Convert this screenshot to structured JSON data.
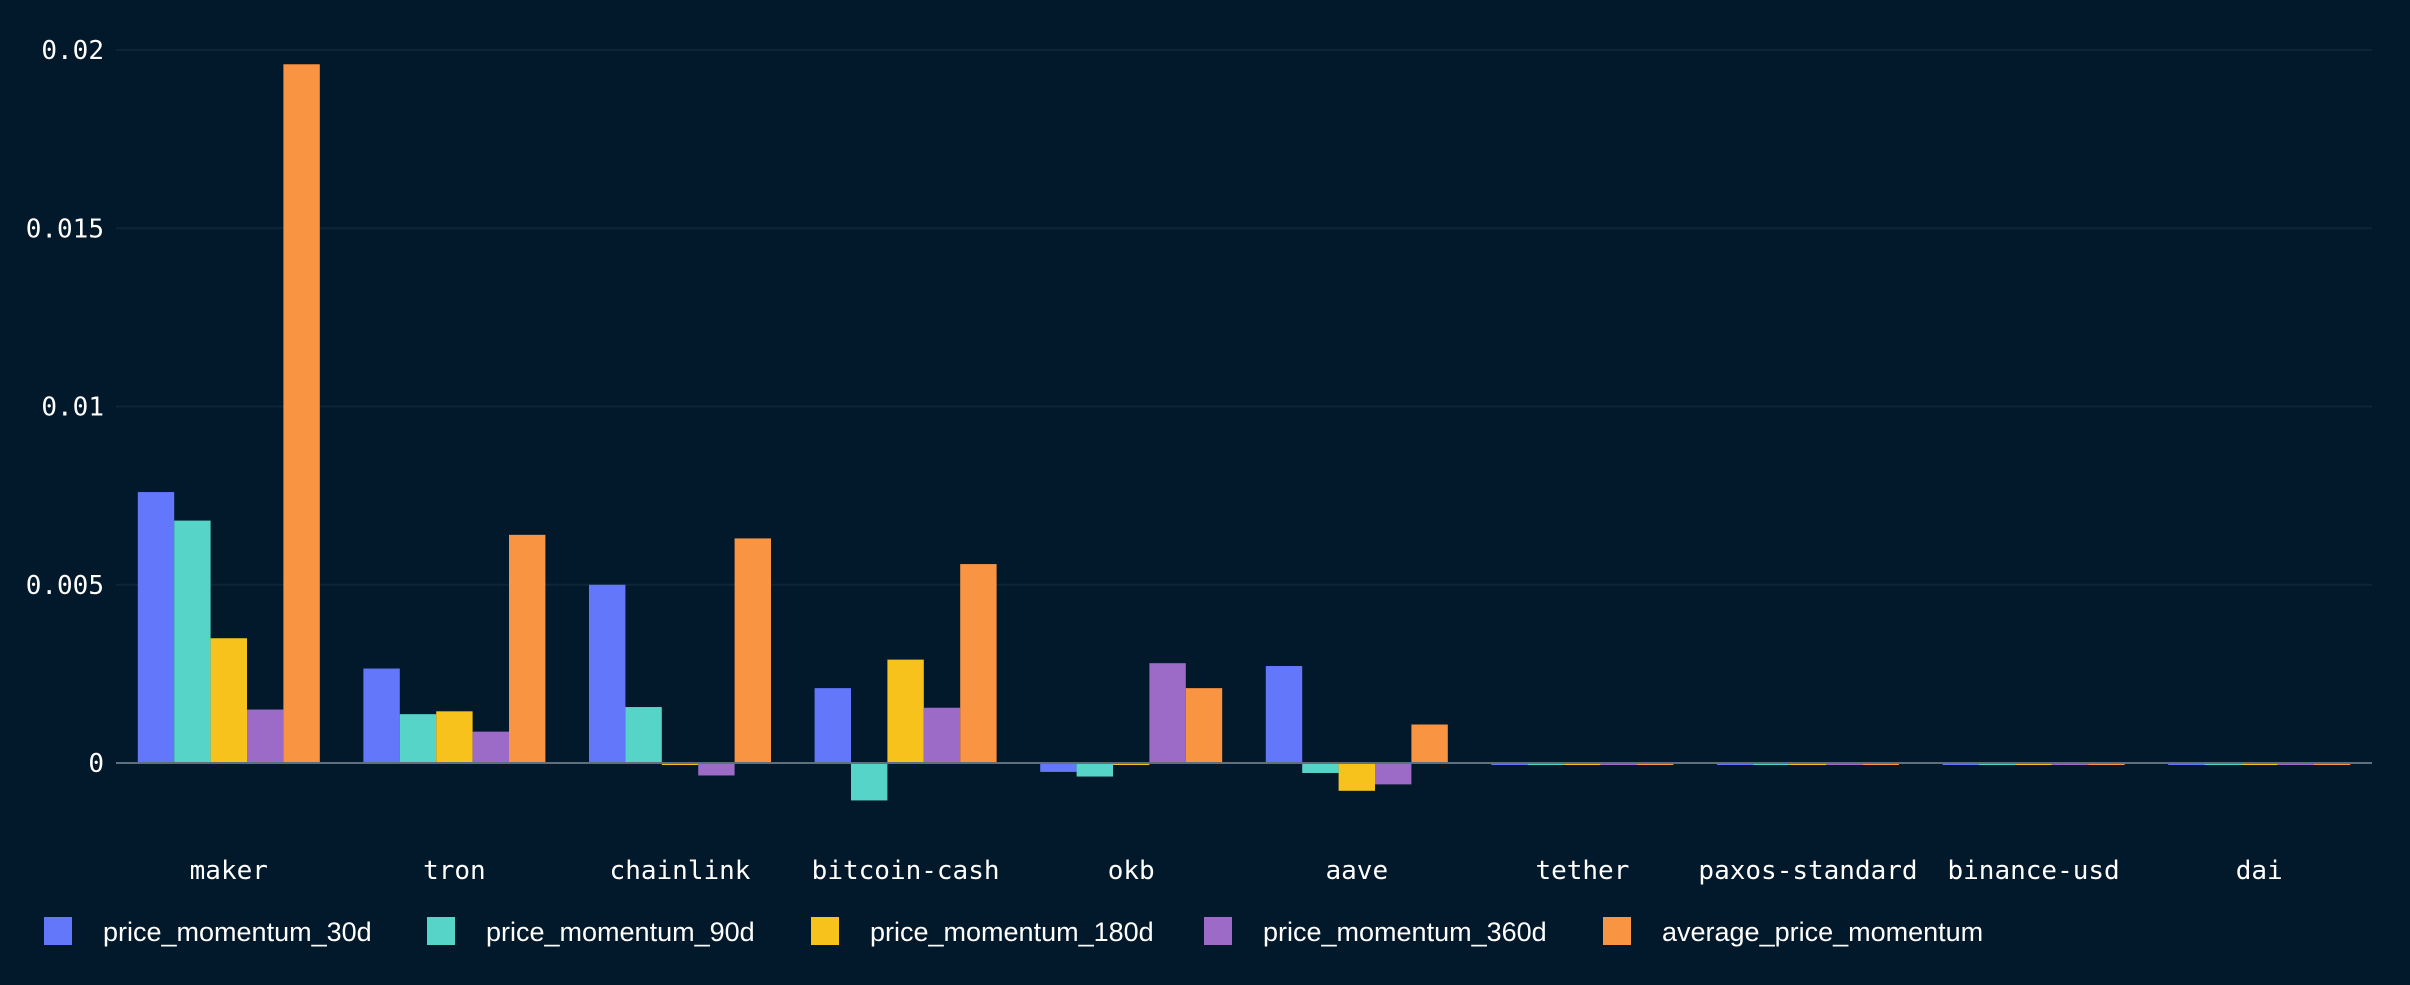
{
  "chart_data": {
    "type": "bar",
    "categories": [
      "maker",
      "tron",
      "chainlink",
      "bitcoin-cash",
      "okb",
      "aave",
      "tether",
      "paxos-standard",
      "binance-usd",
      "dai"
    ],
    "series": [
      {
        "name": "price_momentum_30d",
        "color": "#6377fb",
        "values": [
          0.0076,
          0.00265,
          0.005,
          0.0021,
          -0.00025,
          0.00272,
          -3e-05,
          -2e-05,
          -2e-05,
          -2e-05
        ]
      },
      {
        "name": "price_momentum_90d",
        "color": "#56d4c8",
        "values": [
          0.0068,
          0.00137,
          0.00157,
          -0.00105,
          -0.00038,
          -0.00028,
          -3e-05,
          -2e-05,
          -2e-05,
          -2e-05
        ]
      },
      {
        "name": "price_momentum_180d",
        "color": "#f7c21c",
        "values": [
          0.0035,
          0.00145,
          -5e-05,
          0.0029,
          -5e-05,
          -0.00078,
          -3e-05,
          -2e-05,
          -2e-05,
          -2e-05
        ]
      },
      {
        "name": "price_momentum_360d",
        "color": "#9c6ac7",
        "values": [
          0.0015,
          0.00088,
          -0.00035,
          0.00155,
          0.0028,
          -0.0006,
          0.0,
          -2e-05,
          -2e-05,
          -2e-05
        ]
      },
      {
        "name": "average_price_momentum",
        "color": "#f89442",
        "values": [
          0.0196,
          0.0064,
          0.0063,
          0.00558,
          0.0021,
          0.00108,
          -4e-05,
          -3e-05,
          -3e-05,
          -3e-05
        ]
      }
    ],
    "yticks": [
      "0",
      "0.005",
      "0.01",
      "0.015",
      "0.02"
    ],
    "ylim": [
      -0.0015,
      0.02
    ],
    "grid": true,
    "legend_position": "bottom-left",
    "xlabel": "",
    "ylabel": "",
    "title": ""
  }
}
